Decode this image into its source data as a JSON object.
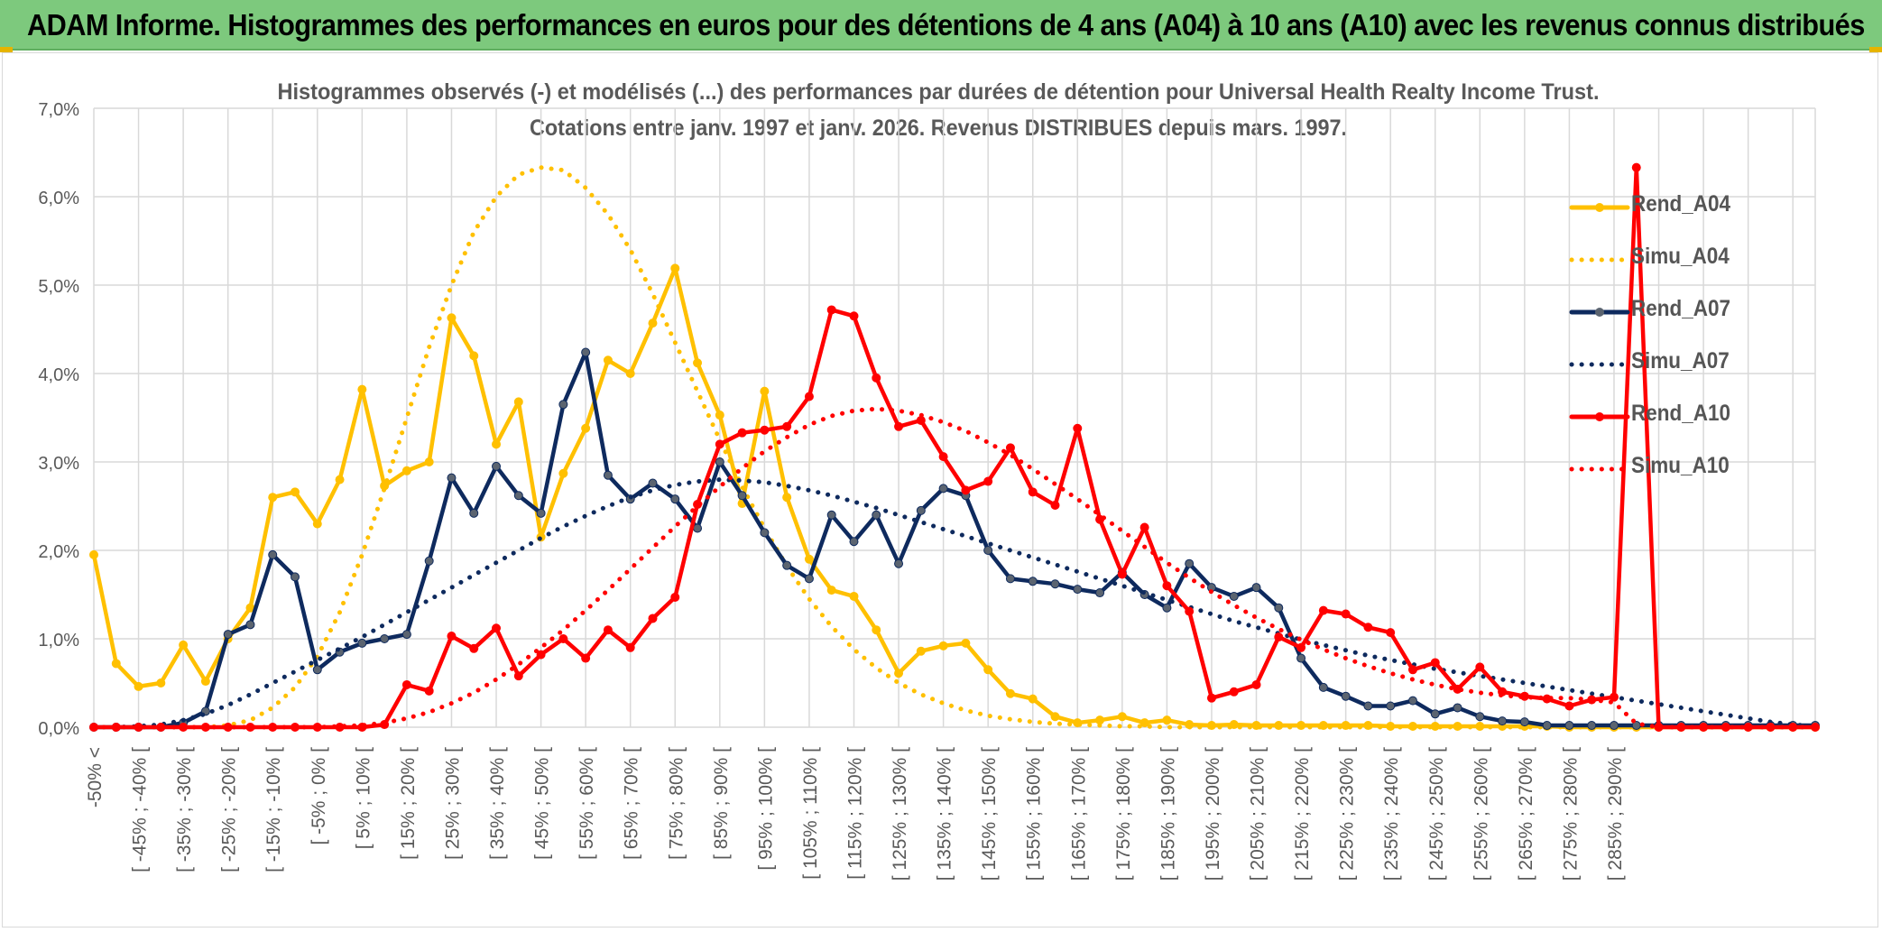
{
  "banner": {
    "title": "ADAM Informe. Histogrammes des performances en euros pour des détentions de 4 ans (A04) à 10 ans (A10) avec les revenus connus distribués"
  },
  "colors": {
    "banner_bg": "#7dc97d",
    "a04": "#ffc000",
    "a07": "#0e2a5e",
    "a07_marker": "#5b6470",
    "a10": "#ff0000",
    "grid": "#d9d9d9",
    "axis_text": "#595959"
  },
  "chart_data": {
    "type": "line",
    "title": "Histogrammes observés (-) et modélisés (...) des performances par durées de détention pour Universal Health Realty Income Trust.",
    "subtitle": "Cotations entre janv. 1997 et janv. 2026. Revenus DISTRIBUES depuis mars. 1997.",
    "xlabel": "",
    "ylabel": "",
    "ylim": [
      0,
      7.0
    ],
    "yticks": [
      "0,0%",
      "1,0%",
      "2,0%",
      "3,0%",
      "4,0%",
      "5,0%",
      "6,0%",
      "7,0%"
    ],
    "grid": true,
    "legend_position": "right",
    "x_ticks": [
      "-50% <",
      "[ -45% ; -40% [",
      "[ -35% ; -30% [",
      "[ -25% ; -20% [",
      "[ -15% ; -10% [",
      "[ -5% ; 0% [",
      "[ 5% ; 10% [",
      "[ 15% ; 20% [",
      "[ 25% ; 30% [",
      "[ 35% ; 40% [",
      "[ 45% ; 50% [",
      "[ 55% ; 60% [",
      "[ 65% ; 70% [",
      "[ 75% ; 80% [",
      "[ 85% ; 90% [",
      "[ 95% ; 100% [",
      "[ 105% ; 110% [",
      "[ 115% ; 120% [",
      "[ 125% ; 130% [",
      "[ 135% ; 140% [",
      "[ 145% ; 150% [",
      "[ 155% ; 160% [",
      "[ 165% ; 170% [",
      "[ 175% ; 180% [",
      "[ 185% ; 190% [",
      "[ 195% ; 200% [",
      "[ 205% ; 210% [",
      "[ 215% ; 220% [",
      "[ 225% ; 230% [",
      "[ 235% ; 240% [",
      "[ 245% ; 250% [",
      "[ 255% ; 260% [",
      "[ 265% ; 270% [",
      "[ 275% ; 280% [",
      "[ 285% ; 290% ["
    ],
    "series": [
      {
        "name": "Rend_A04",
        "style": "solid",
        "color": "#ffc000",
        "values": [
          1.95,
          0.72,
          0.46,
          0.5,
          0.93,
          0.52,
          1.0,
          1.35,
          2.6,
          2.66,
          2.3,
          2.8,
          3.82,
          2.73,
          2.9,
          3.0,
          4.63,
          4.2,
          3.2,
          3.68,
          2.15,
          2.87,
          3.38,
          4.15,
          4.0,
          4.57,
          5.19,
          4.12,
          3.53,
          2.53,
          3.8,
          2.6,
          1.9,
          1.55,
          1.48,
          1.1,
          0.61,
          0.86,
          0.92,
          0.95,
          0.65,
          0.38,
          0.32,
          0.12,
          0.05,
          0.08,
          0.12,
          0.05,
          0.08,
          0.03,
          0.02,
          0.03,
          0.02,
          0.02,
          0.02,
          0.02,
          0.02,
          0.02,
          0.01,
          0.01,
          0.01,
          0.01,
          0.01,
          0.01,
          0.01,
          0.01,
          0,
          0,
          0,
          0,
          0,
          0,
          0,
          0,
          0,
          0,
          0,
          0
        ]
      },
      {
        "name": "Simu_A04",
        "style": "dotted",
        "color": "#ffc000",
        "values": [
          0,
          0,
          0,
          0,
          0,
          0,
          0.02,
          0.08,
          0.22,
          0.45,
          0.8,
          1.3,
          1.95,
          2.7,
          3.5,
          4.3,
          5.0,
          5.6,
          6.0,
          6.25,
          6.33,
          6.3,
          6.1,
          5.8,
          5.4,
          4.9,
          4.35,
          3.8,
          3.25,
          2.72,
          2.25,
          1.82,
          1.45,
          1.14,
          0.88,
          0.67,
          0.5,
          0.37,
          0.27,
          0.19,
          0.13,
          0.09,
          0.06,
          0.04,
          0.03,
          0.02,
          0.01,
          0.01,
          0,
          0,
          0,
          0,
          0,
          0,
          0,
          0,
          0,
          0,
          0,
          0,
          0,
          0,
          0,
          0,
          0,
          0,
          0,
          0,
          0,
          0,
          0,
          0,
          0,
          0,
          0,
          0,
          0,
          0
        ]
      },
      {
        "name": "Rend_A07",
        "style": "solid",
        "color": "#0e2a5e",
        "values": [
          0,
          0,
          0,
          0,
          0.05,
          0.18,
          1.05,
          1.16,
          1.95,
          1.7,
          0.65,
          0.85,
          0.95,
          1.0,
          1.05,
          1.88,
          2.82,
          2.42,
          2.95,
          2.62,
          2.42,
          3.65,
          4.24,
          2.85,
          2.58,
          2.76,
          2.58,
          2.25,
          3.0,
          2.62,
          2.2,
          1.83,
          1.68,
          2.4,
          2.1,
          2.4,
          1.85,
          2.45,
          2.7,
          2.62,
          2.0,
          1.68,
          1.65,
          1.62,
          1.56,
          1.52,
          1.75,
          1.5,
          1.35,
          1.85,
          1.58,
          1.48,
          1.58,
          1.35,
          0.78,
          0.45,
          0.35,
          0.24,
          0.24,
          0.3,
          0.15,
          0.22,
          0.12,
          0.07,
          0.06,
          0.02,
          0.02,
          0.02,
          0.02,
          0.02,
          0.02,
          0.02,
          0.02,
          0.02,
          0.02,
          0.02,
          0.02,
          0.02
        ]
      },
      {
        "name": "Simu_A07",
        "style": "dotted",
        "color": "#0e2a5e",
        "values": [
          0,
          0,
          0.01,
          0.03,
          0.08,
          0.15,
          0.25,
          0.37,
          0.5,
          0.63,
          0.76,
          0.89,
          1.02,
          1.16,
          1.3,
          1.44,
          1.58,
          1.72,
          1.86,
          2.0,
          2.14,
          2.27,
          2.39,
          2.5,
          2.6,
          2.68,
          2.74,
          2.78,
          2.8,
          2.79,
          2.77,
          2.73,
          2.68,
          2.62,
          2.55,
          2.48,
          2.4,
          2.32,
          2.24,
          2.16,
          2.08,
          2.0,
          1.92,
          1.84,
          1.76,
          1.68,
          1.6,
          1.52,
          1.44,
          1.36,
          1.28,
          1.2,
          1.13,
          1.06,
          0.99,
          0.93,
          0.87,
          0.81,
          0.76,
          0.71,
          0.66,
          0.62,
          0.58,
          0.54,
          0.5,
          0.46,
          0.42,
          0.38,
          0.34,
          0.3,
          0.26,
          0.22,
          0.18,
          0.14,
          0.1,
          0.06,
          0.03,
          0.01
        ]
      },
      {
        "name": "Rend_A10",
        "style": "solid",
        "color": "#ff0000",
        "values": [
          0,
          0,
          0,
          0,
          0,
          0,
          0,
          0,
          0,
          0,
          0,
          0,
          0,
          0.03,
          0.48,
          0.41,
          1.03,
          0.89,
          1.12,
          0.58,
          0.82,
          1.0,
          0.78,
          1.1,
          0.9,
          1.23,
          1.47,
          2.52,
          3.2,
          3.33,
          3.36,
          3.4,
          3.74,
          4.72,
          4.65,
          3.95,
          3.4,
          3.47,
          3.06,
          2.68,
          2.78,
          3.16,
          2.66,
          2.51,
          3.38,
          2.35,
          1.73,
          2.26,
          1.6,
          1.31,
          0.33,
          0.4,
          0.48,
          1.02,
          0.9,
          1.32,
          1.28,
          1.13,
          1.07,
          0.65,
          0.73,
          0.43,
          0.68,
          0.4,
          0.35,
          0.32,
          0.24,
          0.31,
          0.34,
          6.33,
          0,
          0,
          0,
          0,
          0,
          0,
          0,
          0
        ]
      },
      {
        "name": "Simu_A10",
        "style": "dotted",
        "color": "#ff0000",
        "values": [
          0,
          0,
          0,
          0,
          0,
          0,
          0,
          0,
          0,
          0,
          0,
          0.01,
          0.02,
          0.05,
          0.1,
          0.17,
          0.27,
          0.39,
          0.54,
          0.71,
          0.9,
          1.1,
          1.32,
          1.55,
          1.79,
          2.03,
          2.27,
          2.5,
          2.72,
          2.93,
          3.12,
          3.28,
          3.42,
          3.52,
          3.58,
          3.6,
          3.58,
          3.53,
          3.45,
          3.35,
          3.22,
          3.08,
          2.92,
          2.75,
          2.58,
          2.4,
          2.22,
          2.04,
          1.86,
          1.69,
          1.53,
          1.38,
          1.24,
          1.11,
          0.99,
          0.88,
          0.78,
          0.69,
          0.61,
          0.54,
          0.48,
          0.43,
          0.39,
          0.36,
          0.34,
          0.33,
          0.33,
          0.31,
          0.28,
          0.04,
          0,
          0,
          0,
          0,
          0,
          0,
          0,
          0
        ]
      }
    ]
  }
}
